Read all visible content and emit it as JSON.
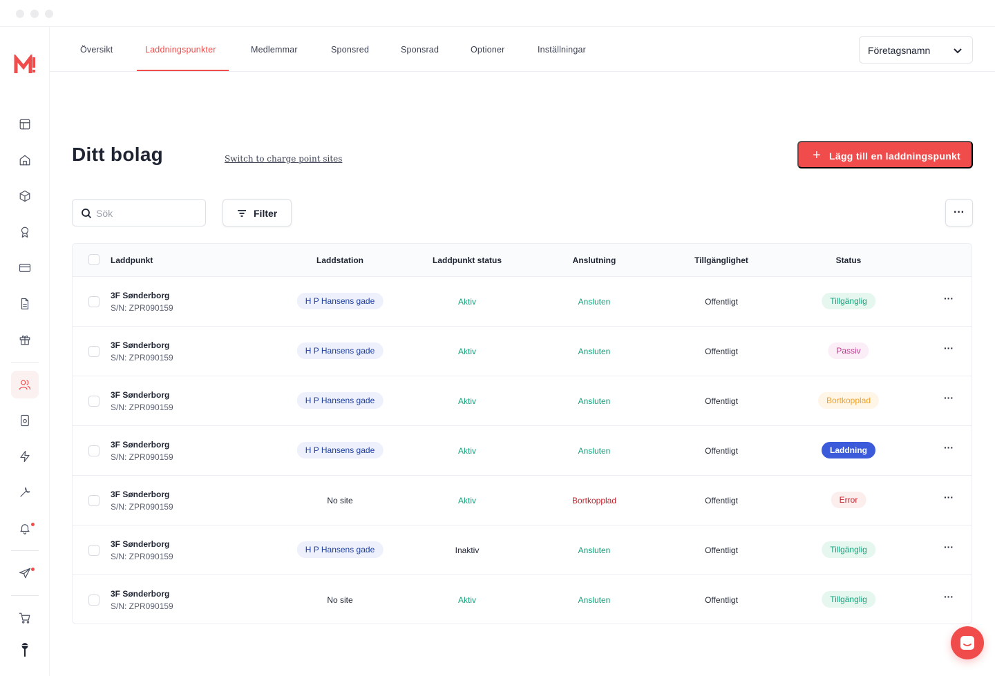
{
  "nav": {
    "tabs": [
      {
        "label": "Översikt"
      },
      {
        "label": "Laddningspunkter",
        "active": true
      },
      {
        "label": "Medlemmar"
      },
      {
        "label": "Sponsred"
      },
      {
        "label": "Sponsrad"
      },
      {
        "label": "Optioner"
      },
      {
        "label": "Inställningar"
      }
    ],
    "company_select": "Företagsnamn"
  },
  "sidebar": {
    "logo": "M!",
    "icons": [
      "layout-icon",
      "home-icon",
      "box-icon",
      "award-icon",
      "credit-card-icon",
      "document-icon",
      "gift-icon",
      "users-icon",
      "device-icon",
      "bolt-icon",
      "wrench-icon",
      "bell-icon",
      "send-icon",
      "cart-icon",
      "avatar-icon"
    ],
    "active_icon": "users-icon"
  },
  "page": {
    "title": "Ditt bolag",
    "switch_link": "Switch to charge point sites",
    "add_button": "Lägg till en laddningspunkt"
  },
  "toolbar": {
    "search_placeholder": "Sök",
    "filter_label": "Filter",
    "more_label": "···"
  },
  "table": {
    "headers": {
      "laddpunkt": "Laddpunkt",
      "laddstation": "Laddstation",
      "laddpunkt_status": "Laddpunkt status",
      "anslutning": "Anslutning",
      "tillganglighet": "Tillgänglighet",
      "status": "Status"
    },
    "rows": [
      {
        "name": "3F Sønderborg",
        "sn": "S/N: ZPR090159",
        "station": "H P Hansens gade",
        "station_pill": true,
        "cp_status": "Aktiv",
        "connection": "Ansluten",
        "availability": "Offentligt",
        "status": "Tillgänglig",
        "status_kind": "available"
      },
      {
        "name": "3F Sønderborg",
        "sn": "S/N: ZPR090159",
        "station": "H P Hansens gade",
        "station_pill": true,
        "cp_status": "Aktiv",
        "connection": "Ansluten",
        "availability": "Offentligt",
        "status": "Passiv",
        "status_kind": "passive"
      },
      {
        "name": "3F Sønderborg",
        "sn": "S/N: ZPR090159",
        "station": "H P Hansens gade",
        "station_pill": true,
        "cp_status": "Aktiv",
        "connection": "Ansluten",
        "availability": "Offentligt",
        "status": "Bortkopplad",
        "status_kind": "disconnected"
      },
      {
        "name": "3F Sønderborg",
        "sn": "S/N: ZPR090159",
        "station": "H P Hansens gade",
        "station_pill": true,
        "cp_status": "Aktiv",
        "connection": "Ansluten",
        "availability": "Offentligt",
        "status": "Laddning",
        "status_kind": "charging"
      },
      {
        "name": "3F Sønderborg",
        "sn": "S/N: ZPR090159",
        "station": "No site",
        "station_pill": false,
        "cp_status": "Aktiv",
        "connection": "Bortkopplad",
        "availability": "Offentligt",
        "status": "Error",
        "status_kind": "error"
      },
      {
        "name": "3F Sønderborg",
        "sn": "S/N: ZPR090159",
        "station": "H P Hansens gade",
        "station_pill": true,
        "cp_status": "Inaktiv",
        "connection": "Ansluten",
        "availability": "Offentligt",
        "status": "Tillgänglig",
        "status_kind": "available"
      },
      {
        "name": "3F Sønderborg",
        "sn": "S/N: ZPR090159",
        "station": "No site",
        "station_pill": false,
        "cp_status": "Aktiv",
        "connection": "Ansluten",
        "availability": "Offentligt",
        "status": "Tillgänglig",
        "status_kind": "available"
      }
    ],
    "row_more_label": "···"
  },
  "colors": {
    "accent": "#f04c4c",
    "active_green": "#12a27a",
    "station_pill_bg": "#eef1fb",
    "station_pill_text": "#1d3fa0",
    "available_bg": "#e6f7f0",
    "available_text": "#0fa37a",
    "passive_bg": "#fbeef7",
    "passive_text": "#c0398f",
    "disconnected_bg": "#fff6e8",
    "disconnected_text": "#f0a22a",
    "charging_bg": "#3b5bdb",
    "charging_text": "#ffffff",
    "error_bg": "#fdeeee",
    "error_text": "#c4252e"
  }
}
